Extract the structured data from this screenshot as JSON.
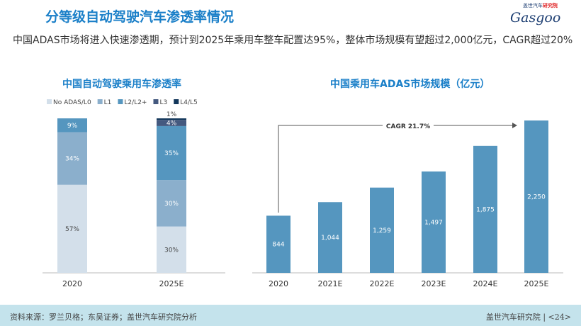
{
  "header": {
    "title": "分等级自动驾驶汽车渗透率情况",
    "logo_text": "Gasgoo",
    "logo_small": "盖世汽车",
    "logo_small_red": "研究院"
  },
  "lead": "中国ADAS市场将进入快速渗透期，预计到2025年乘用车整车配置达95%，整体市场规模有望超过2,000亿元，CAGR超过20%",
  "chart_data": [
    {
      "type": "bar",
      "stacked": true,
      "title": "中国自动驾驶乘用车渗透率",
      "categories": [
        "2020",
        "2025E"
      ],
      "legend_position": "top",
      "series": [
        {
          "name": "No ADAS/L0",
          "values": [
            57,
            30
          ],
          "labels": [
            "57%",
            "30%"
          ],
          "color": "#d3dfea"
        },
        {
          "name": "L1",
          "values": [
            34,
            30
          ],
          "labels": [
            "34%",
            "30%"
          ],
          "color": "#8bafcc"
        },
        {
          "name": "L2/L2+",
          "values": [
            9,
            35
          ],
          "labels": [
            "9%",
            "35%"
          ],
          "color": "#5596bf"
        },
        {
          "name": "L3",
          "values": [
            0,
            4
          ],
          "labels": [
            "",
            "4%"
          ],
          "color": "#44597f"
        },
        {
          "name": "L4/L5",
          "values": [
            0,
            1
          ],
          "labels": [
            "",
            "1%"
          ],
          "color": "#12365a"
        }
      ],
      "ylim": [
        0,
        100
      ]
    },
    {
      "type": "bar",
      "title": "中国乘用车ADAS市场规模（亿元）",
      "categories": [
        "2020",
        "2021E",
        "2022E",
        "2023E",
        "2024E",
        "2025E"
      ],
      "values": [
        844,
        1044,
        1259,
        1497,
        1875,
        2250
      ],
      "labels": [
        "844",
        "1,044",
        "1,259",
        "1,497",
        "1,875",
        "2,250"
      ],
      "color": "#5596bf",
      "annotation": "CAGR 21.7%",
      "ylim": [
        0,
        2250
      ]
    }
  ],
  "footer": {
    "source": "资料来源：罗兰贝格；东吴证券；盖世汽车研究院分析",
    "page": "盖世汽车研究院 | <24>"
  }
}
